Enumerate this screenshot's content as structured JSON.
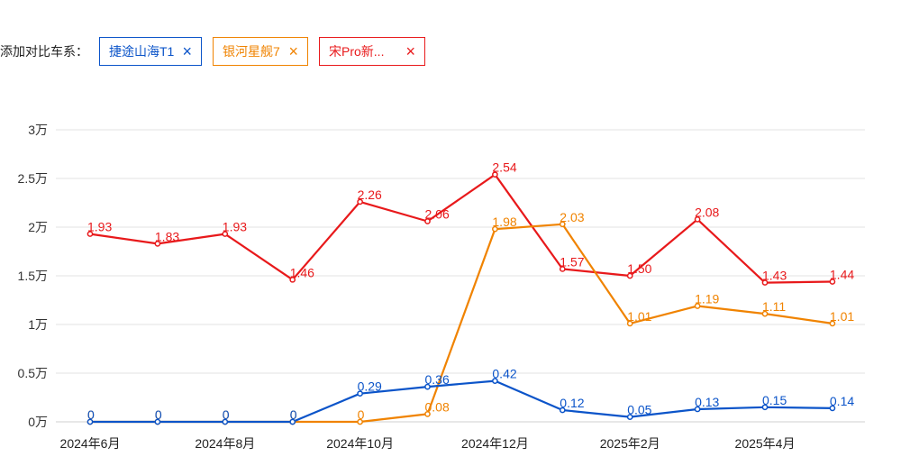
{
  "compare": {
    "label": "添加对比车系：",
    "chips": [
      {
        "name": "捷途山海T1",
        "close_glyph": "×",
        "color": "#0b54c9",
        "border": "#0b54c9"
      },
      {
        "name": "银河星舰7",
        "close_glyph": "×",
        "color": "#f08300",
        "border": "#f08300"
      },
      {
        "name": "宋Pro新...",
        "close_glyph": "×",
        "color": "#e8191b",
        "border": "#e8191b"
      }
    ]
  },
  "chart_data": {
    "type": "line",
    "x": [
      "2024年6月",
      "2024年7月",
      "2024年8月",
      "2024年9月",
      "2024年10月",
      "2024年11月",
      "2024年12月",
      "2025年1月",
      "2025年2月",
      "2025年3月",
      "2025年4月",
      "2025年5月"
    ],
    "x_tick_labels": [
      "2024年6月",
      "",
      "2024年8月",
      "",
      "2024年10月",
      "",
      "2024年12月",
      "",
      "2025年2月",
      "",
      "2025年4月",
      ""
    ],
    "y_tick_labels": [
      "0万",
      "0.5万",
      "1万",
      "1.5万",
      "2万",
      "2.5万",
      "3万"
    ],
    "ylim": [
      0,
      3
    ],
    "grid": true,
    "series": [
      {
        "name": "宋Pro新...",
        "color": "#e8191b",
        "values": [
          1.93,
          1.83,
          1.93,
          1.46,
          2.26,
          2.06,
          2.54,
          1.57,
          1.5,
          2.08,
          1.43,
          1.44
        ],
        "labels": [
          "1.93",
          "1.83",
          "1.93",
          "1.46",
          "2.26",
          "2.06",
          "2.54",
          "1.57",
          "1.50",
          "2.08",
          "1.43",
          "1.44"
        ]
      },
      {
        "name": "银河星舰7",
        "color": "#f08300",
        "values": [
          0,
          0,
          0,
          0,
          0,
          0.08,
          1.98,
          2.03,
          1.01,
          1.19,
          1.11,
          1.01
        ],
        "labels": [
          "0",
          "0",
          "0",
          "0",
          "0",
          "0.08",
          "1.98",
          "2.03",
          "1.01",
          "1.19",
          "1.11",
          "1.01"
        ]
      },
      {
        "name": "捷途山海T1",
        "color": "#0b54c9",
        "values": [
          0,
          0,
          0,
          0,
          0.29,
          0.36,
          0.42,
          0.12,
          0.05,
          0.13,
          0.15,
          0.14
        ],
        "labels": [
          "0",
          "0",
          "0",
          "0",
          "0.29",
          "0.36",
          "0.42",
          "0.12",
          "0.05",
          "0.13",
          "0.15",
          "0.14"
        ]
      }
    ]
  }
}
